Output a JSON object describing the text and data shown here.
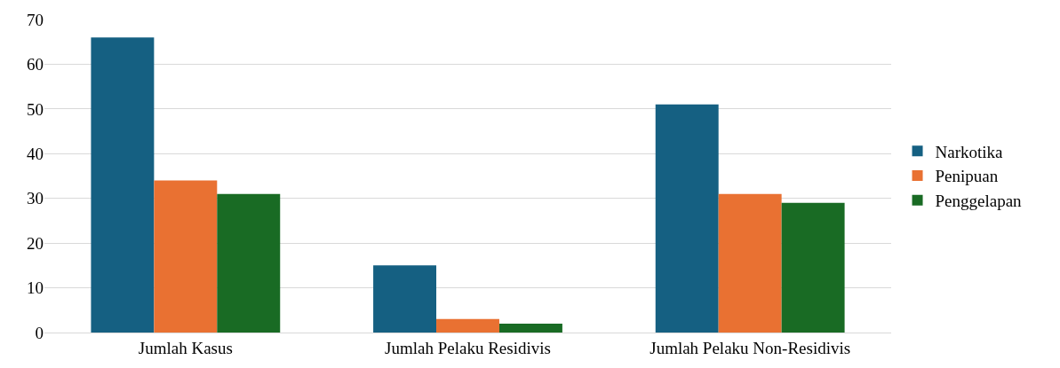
{
  "chart_data": {
    "type": "bar",
    "categories": [
      "Jumlah Kasus",
      "Jumlah Pelaku Residivis",
      "Jumlah Pelaku Non-Residivis"
    ],
    "series": [
      {
        "name": "Narkotika",
        "color": "#156082",
        "values": [
          66,
          15,
          51
        ]
      },
      {
        "name": "Penipuan",
        "color": "#e97132",
        "values": [
          34,
          3,
          31
        ]
      },
      {
        "name": "Penggelapan",
        "color": "#196b24",
        "values": [
          31,
          2,
          29
        ]
      }
    ],
    "ylim": [
      0,
      70
    ],
    "yticks": [
      0,
      10,
      20,
      30,
      40,
      50,
      60,
      70
    ],
    "grid": "y",
    "legend": "right"
  }
}
